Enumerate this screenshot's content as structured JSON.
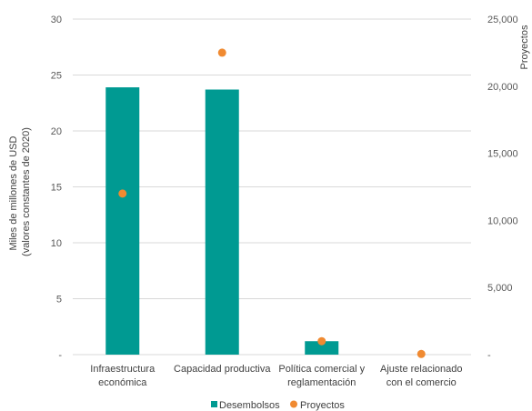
{
  "chart_data": {
    "type": "bar",
    "categories": [
      [
        "Infraestructura",
        "económica"
      ],
      [
        "Capacidad productiva"
      ],
      [
        "Política comercial y",
        "reglamentación"
      ],
      [
        "Ajuste relacionado",
        "con el comercio"
      ]
    ],
    "series": [
      {
        "name": "Desembolsos",
        "type": "bar",
        "axis": "left",
        "values": [
          23.9,
          23.7,
          1.2,
          0
        ],
        "color": "#009a92"
      },
      {
        "name": "Proyectos",
        "type": "scatter",
        "axis": "right",
        "values": [
          12000,
          22500,
          1000,
          50
        ],
        "color": "#f08a31"
      }
    ],
    "left_axis": {
      "title_lines": [
        "Miles de millones de USD",
        "(valores constantes de 2020)"
      ],
      "ylim": [
        0,
        30
      ],
      "ticks": [
        0,
        5,
        10,
        15,
        20,
        25,
        30
      ],
      "tick_labels": [
        "-",
        "5",
        "10",
        "15",
        "20",
        "25",
        "30"
      ]
    },
    "right_axis": {
      "title": "Proyectos",
      "ylim": [
        0,
        25000
      ],
      "ticks": [
        0,
        5000,
        10000,
        15000,
        20000,
        25000
      ],
      "tick_labels": [
        "-",
        "5,000",
        "10,000",
        "15,000",
        "20,000",
        "25,000"
      ]
    },
    "grid": true,
    "legend": {
      "position": "bottom",
      "entries": [
        {
          "label": "Desembolsos",
          "marker": "square",
          "color": "#009a92"
        },
        {
          "label": "Proyectos",
          "marker": "circle",
          "color": "#f08a31"
        }
      ]
    }
  }
}
